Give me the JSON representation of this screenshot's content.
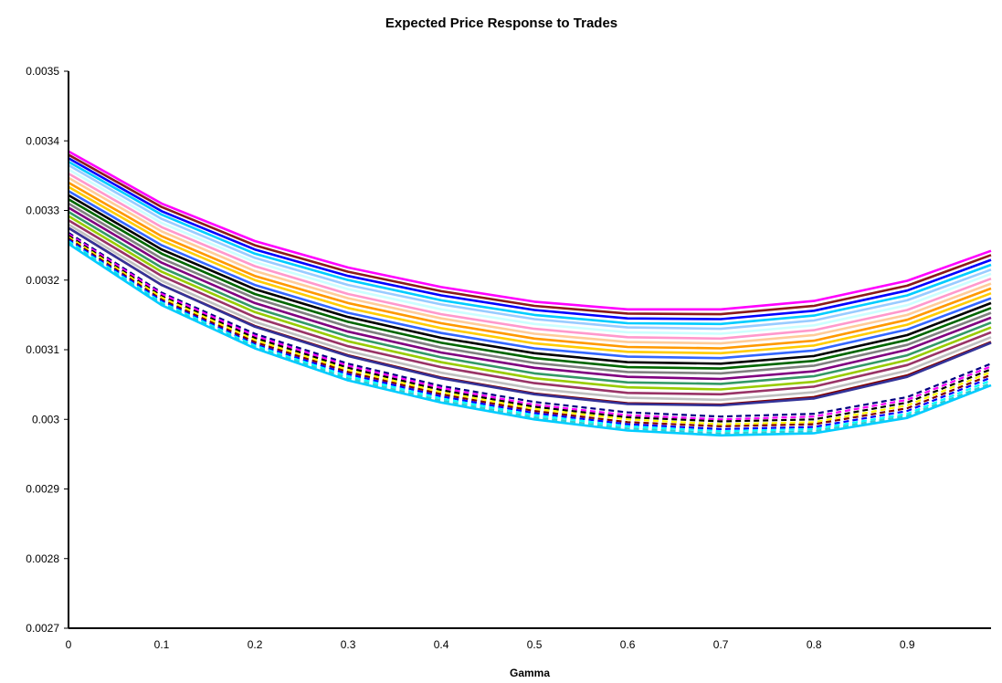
{
  "chart_data": {
    "type": "line",
    "title": "Expected Price Response to Trades",
    "xlabel": "Gamma",
    "ylabel": "",
    "xlim": [
      0,
      0.99
    ],
    "ylim": [
      0.0027,
      0.0035
    ],
    "x_ticks": [
      "0",
      "0.1",
      "0.2",
      "0.3",
      "0.4",
      "0.5",
      "0.6",
      "0.7",
      "0.8",
      "0.9"
    ],
    "y_ticks": [
      "0.0027",
      "0.0028",
      "0.0029",
      "0.003",
      "0.0031",
      "0.0032",
      "0.0033",
      "0.0034",
      "0.0035"
    ],
    "x": [
      0,
      0.1,
      0.2,
      0.3,
      0.4,
      0.5,
      0.6,
      0.7,
      0.8,
      0.9,
      0.99
    ],
    "legend": "none",
    "grid": false,
    "series": [
      {
        "color": "#FF00FF",
        "dashed": false,
        "values": [
          0.003385,
          0.00331,
          0.003256,
          0.003218,
          0.00319,
          0.003169,
          0.003158,
          0.003158,
          0.00317,
          0.003199,
          0.003242
        ]
      },
      {
        "color": "#8B1A1A",
        "dashed": false,
        "values": [
          0.00338,
          0.003305,
          0.00325,
          0.003212,
          0.003184,
          0.003163,
          0.003152,
          0.003151,
          0.003163,
          0.003192,
          0.003236
        ]
      },
      {
        "color": "#0000FF",
        "dashed": false,
        "values": [
          0.003375,
          0.003299,
          0.003244,
          0.003206,
          0.003178,
          0.003157,
          0.003145,
          0.003144,
          0.003156,
          0.003185,
          0.003229
        ]
      },
      {
        "color": "#00CCFF",
        "dashed": false,
        "values": [
          0.00337,
          0.003294,
          0.003238,
          0.0032,
          0.003171,
          0.00315,
          0.003138,
          0.003137,
          0.003149,
          0.003178,
          0.003222
        ]
      },
      {
        "color": "#99CCFF",
        "dashed": false,
        "values": [
          0.003365,
          0.003288,
          0.003232,
          0.003193,
          0.003165,
          0.003144,
          0.003132,
          0.00313,
          0.003142,
          0.003171,
          0.003215
        ]
      },
      {
        "color": "#CCFFFF",
        "dashed": false,
        "values": [
          0.003359,
          0.003282,
          0.003226,
          0.003187,
          0.003158,
          0.003137,
          0.003125,
          0.003123,
          0.003135,
          0.003164,
          0.003209
        ]
      },
      {
        "color": "#FF99CC",
        "dashed": false,
        "values": [
          0.003353,
          0.003276,
          0.00322,
          0.00318,
          0.003151,
          0.00313,
          0.003118,
          0.003116,
          0.003128,
          0.003157,
          0.003202
        ]
      },
      {
        "color": "#FFCC99",
        "dashed": false,
        "values": [
          0.003347,
          0.00327,
          0.003213,
          0.003174,
          0.003145,
          0.003123,
          0.003111,
          0.003109,
          0.003121,
          0.00315,
          0.003195
        ]
      },
      {
        "color": "#FF9900",
        "dashed": false,
        "values": [
          0.00334,
          0.003263,
          0.003206,
          0.003167,
          0.003138,
          0.003116,
          0.003104,
          0.003102,
          0.003113,
          0.003143,
          0.003188
        ]
      },
      {
        "color": "#FFCC00",
        "dashed": false,
        "values": [
          0.003334,
          0.003257,
          0.0032,
          0.00316,
          0.003131,
          0.003109,
          0.003097,
          0.003095,
          0.003106,
          0.003136,
          0.003181
        ]
      },
      {
        "color": "#3366FF",
        "dashed": false,
        "values": [
          0.003328,
          0.00325,
          0.003193,
          0.003153,
          0.003124,
          0.003102,
          0.00309,
          0.003088,
          0.003099,
          0.003129,
          0.003174
        ]
      },
      {
        "color": "#000000",
        "dashed": false,
        "values": [
          0.003322,
          0.003244,
          0.003187,
          0.003147,
          0.003117,
          0.003095,
          0.003082,
          0.00308,
          0.003091,
          0.003121,
          0.003167
        ]
      },
      {
        "color": "#006600",
        "dashed": false,
        "values": [
          0.003316,
          0.003238,
          0.00318,
          0.00314,
          0.00311,
          0.003088,
          0.003075,
          0.003073,
          0.003084,
          0.003114,
          0.00316
        ]
      },
      {
        "color": "#808080",
        "dashed": false,
        "values": [
          0.00331,
          0.003231,
          0.003174,
          0.003133,
          0.003103,
          0.003081,
          0.003068,
          0.003066,
          0.003077,
          0.003107,
          0.003153
        ]
      },
      {
        "color": "#800080",
        "dashed": false,
        "values": [
          0.003304,
          0.003225,
          0.003167,
          0.003126,
          0.003096,
          0.003074,
          0.003061,
          0.003058,
          0.003069,
          0.0031,
          0.003146
        ]
      },
      {
        "color": "#339966",
        "dashed": false,
        "values": [
          0.003298,
          0.003218,
          0.00316,
          0.003119,
          0.003089,
          0.003066,
          0.003053,
          0.003051,
          0.003062,
          0.003092,
          0.003139
        ]
      },
      {
        "color": "#99CC00",
        "dashed": false,
        "values": [
          0.003292,
          0.003212,
          0.003154,
          0.003112,
          0.003082,
          0.003059,
          0.003046,
          0.003043,
          0.003054,
          0.003085,
          0.003132
        ]
      },
      {
        "color": "#993366",
        "dashed": false,
        "values": [
          0.003286,
          0.003206,
          0.003147,
          0.003105,
          0.003075,
          0.003052,
          0.003038,
          0.003036,
          0.003047,
          0.003078,
          0.003125
        ]
      },
      {
        "color": "#C0C0C0",
        "dashed": false,
        "values": [
          0.00328,
          0.003199,
          0.00314,
          0.003098,
          0.003067,
          0.003044,
          0.003031,
          0.003028,
          0.003039,
          0.00307,
          0.003118
        ]
      },
      {
        "color": "#800000",
        "dashed": false,
        "values": [
          0.003275,
          0.003193,
          0.003134,
          0.003092,
          0.00306,
          0.003037,
          0.003023,
          0.003021,
          0.003032,
          0.003063,
          0.003111
        ]
      },
      {
        "color": "#333399",
        "dashed": false,
        "values": [
          0.003275,
          0.003193,
          0.003133,
          0.003091,
          0.003059,
          0.003036,
          0.003022,
          0.00302,
          0.00303,
          0.003061,
          0.00311
        ]
      },
      {
        "color": "#FFFFFF",
        "dashed": true,
        "values": [
          0.00327,
          0.003185,
          0.003126,
          0.003083,
          0.003051,
          0.003028,
          0.003014,
          0.003008,
          0.003012,
          0.003037,
          0.003085
        ]
      },
      {
        "color": "#000080",
        "dashed": true,
        "values": [
          0.003268,
          0.003182,
          0.003123,
          0.00308,
          0.003048,
          0.003025,
          0.00301,
          0.003004,
          0.003008,
          0.003032,
          0.00308
        ]
      },
      {
        "color": "#FF00FF",
        "dashed": true,
        "values": [
          0.003266,
          0.00318,
          0.00312,
          0.003077,
          0.003045,
          0.003021,
          0.003006,
          0.003,
          0.003004,
          0.003028,
          0.003076
        ]
      },
      {
        "color": "#000000",
        "dashed": true,
        "values": [
          0.003264,
          0.003177,
          0.003117,
          0.003074,
          0.003042,
          0.003018,
          0.003003,
          0.002997,
          0.003,
          0.003024,
          0.003072
        ]
      },
      {
        "color": "#FFFF00",
        "dashed": true,
        "values": [
          0.003262,
          0.003175,
          0.003114,
          0.003071,
          0.003039,
          0.003015,
          0.003,
          0.002993,
          0.002996,
          0.00302,
          0.003068
        ]
      },
      {
        "color": "#800000",
        "dashed": true,
        "values": [
          0.00326,
          0.003172,
          0.003111,
          0.003068,
          0.003036,
          0.003012,
          0.002996,
          0.00299,
          0.002993,
          0.003016,
          0.003064
        ]
      },
      {
        "color": "#0000FF",
        "dashed": true,
        "values": [
          0.003258,
          0.00317,
          0.003108,
          0.003065,
          0.003033,
          0.003009,
          0.002993,
          0.002986,
          0.002989,
          0.003012,
          0.00306
        ]
      },
      {
        "color": "#00FFFF",
        "dashed": true,
        "values": [
          0.003256,
          0.003168,
          0.003106,
          0.003062,
          0.00303,
          0.003006,
          0.00299,
          0.002983,
          0.002986,
          0.003008,
          0.003056
        ]
      },
      {
        "color": "#33CCCC",
        "dashed": true,
        "values": [
          0.003254,
          0.003166,
          0.003104,
          0.003059,
          0.003027,
          0.003003,
          0.002987,
          0.00298,
          0.002983,
          0.003005,
          0.003052
        ]
      },
      {
        "color": "#00CCFF",
        "dashed": false,
        "values": [
          0.003252,
          0.003164,
          0.003102,
          0.003056,
          0.003024,
          0.003,
          0.002984,
          0.002977,
          0.00298,
          0.003002,
          0.003049
        ]
      }
    ]
  }
}
